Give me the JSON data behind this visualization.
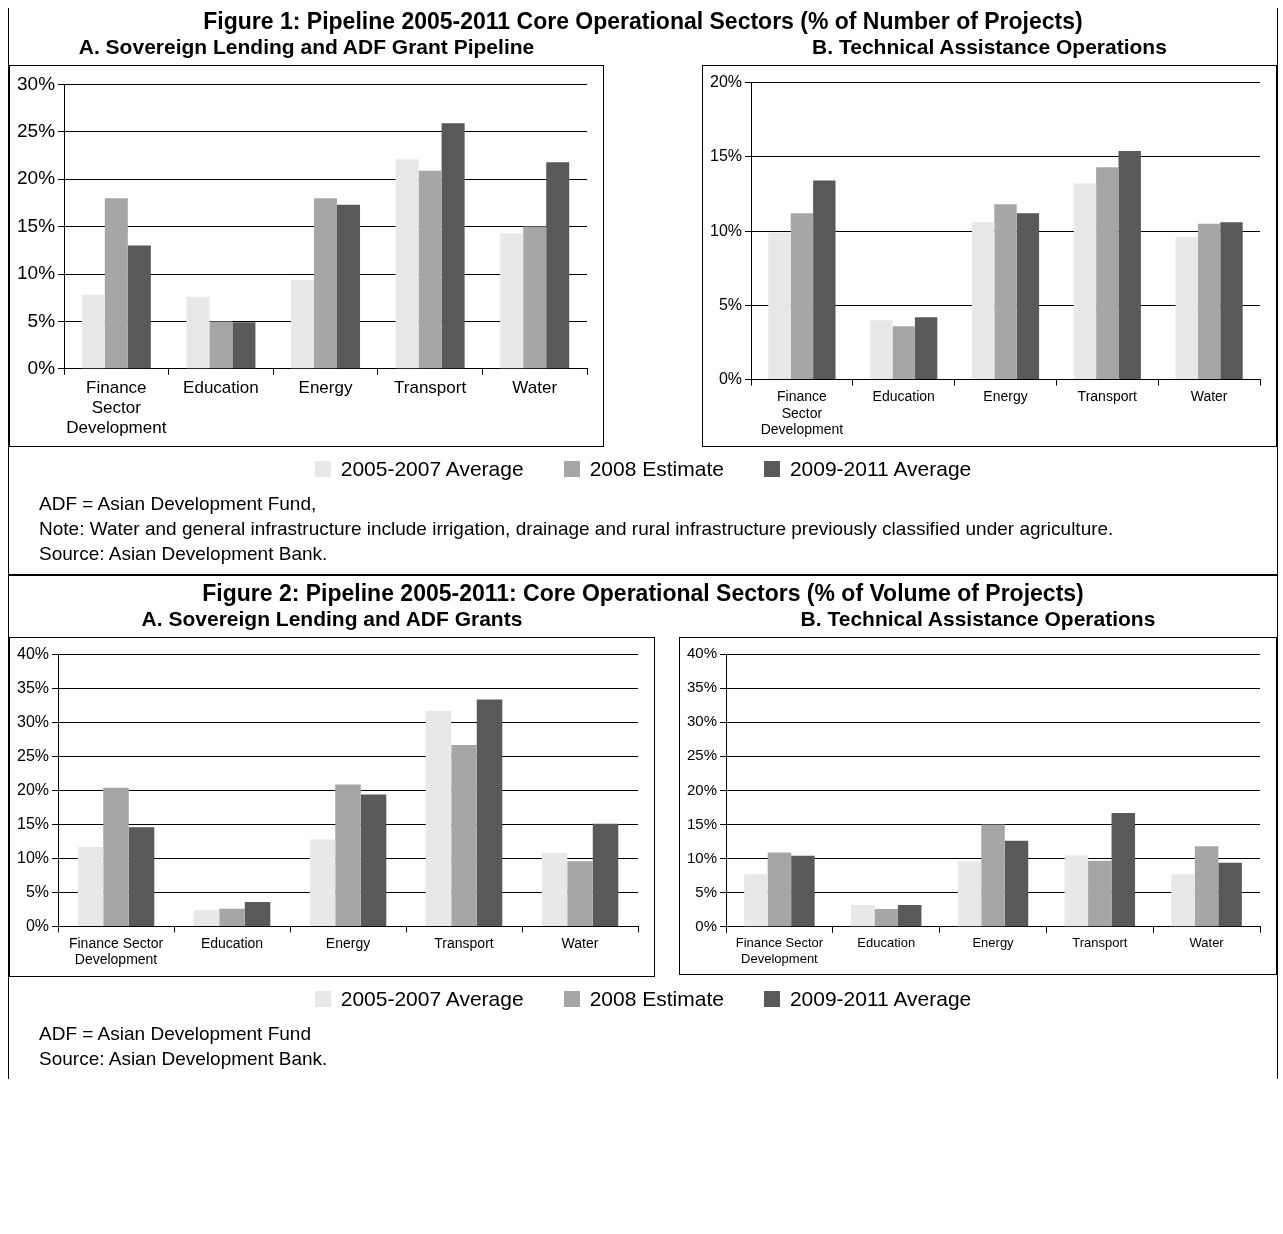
{
  "chart_data": [
    {
      "type": "bar",
      "title": "Figure 1: Pipeline 2005-2011 Core Operational Sectors (% of Number of Projects)",
      "subtitle": "A. Sovereign Lending and ADF Grant Pipeline",
      "categories": [
        "Finance Sector Development",
        "Education",
        "Energy",
        "Transport",
        "Water"
      ],
      "series": [
        {
          "name": "2005-2007 Average",
          "color": "#e8e8e8",
          "values": [
            7.8,
            7.6,
            9.4,
            22.1,
            14.3
          ]
        },
        {
          "name": "2008 Estimate",
          "color": "#a6a6a6",
          "values": [
            18,
            5.0,
            18,
            20.9,
            15.0
          ]
        },
        {
          "name": "2009-2011 Average",
          "color": "#595959",
          "values": [
            13,
            4.9,
            17.3,
            25.9,
            21.8
          ]
        }
      ],
      "ylim": [
        0,
        30
      ],
      "yticks": [
        {
          "value": 0,
          "label": "0%"
        },
        {
          "value": 5,
          "label": "5%"
        },
        {
          "value": 10,
          "label": "10%"
        },
        {
          "value": 15,
          "label": "15%"
        },
        {
          "value": 20,
          "label": "20%"
        },
        {
          "value": 25,
          "label": "25%"
        },
        {
          "value": 30,
          "label": "30%"
        }
      ],
      "grid": "y",
      "legend": "bottom",
      "annotations": [
        "ADF = Asian Development Fund,",
        "Note:  Water and general infrastructure include irrigation, drainage and rural infrastructure previously classified under agriculture.",
        "Source:  Asian Development Bank."
      ]
    },
    {
      "type": "bar",
      "subtitle": "B. Technical Assistance Operations",
      "categories": [
        "Finance Sector Development",
        "Education",
        "Energy",
        "Transport",
        "Water"
      ],
      "series": [
        {
          "name": "2005-2007 Average",
          "color": "#e8e8e8",
          "values": [
            9.9,
            4.0,
            10.6,
            13.2,
            9.6
          ]
        },
        {
          "name": "2008 Estimate",
          "color": "#a6a6a6",
          "values": [
            11.2,
            3.6,
            11.8,
            14.3,
            10.5
          ]
        },
        {
          "name": "2009-2011 Average",
          "color": "#595959",
          "values": [
            13.4,
            4.2,
            11.2,
            15.4,
            10.6
          ]
        }
      ],
      "ylim": [
        0,
        20
      ],
      "yticks": [
        {
          "value": 0,
          "label": "0%"
        },
        {
          "value": 5,
          "label": "5%"
        },
        {
          "value": 10,
          "label": "10%"
        },
        {
          "value": 15,
          "label": "15%"
        },
        {
          "value": 20,
          "label": "20%"
        }
      ],
      "grid": "y",
      "legend": "bottom"
    },
    {
      "type": "bar",
      "title": "Figure 2: Pipeline 2005-2011: Core Operational Sectors (% of Volume of Projects)",
      "subtitle": "A. Sovereign Lending and ADF Grants",
      "categories": [
        "Finance Sector Development",
        "Education",
        "Energy",
        "Transport",
        "Water"
      ],
      "series": [
        {
          "name": "2005-2007 Average",
          "color": "#e8e8e8",
          "values": [
            11.7,
            2.4,
            12.8,
            31.7,
            10.8
          ]
        },
        {
          "name": "2008 Estimate",
          "color": "#a6a6a6",
          "values": [
            20.4,
            2.6,
            20.9,
            26.7,
            9.6
          ]
        },
        {
          "name": "2009-2011 Average",
          "color": "#595959",
          "values": [
            14.6,
            3.6,
            19.4,
            33.4,
            15.1
          ]
        }
      ],
      "ylim": [
        0,
        40
      ],
      "yticks": [
        {
          "value": 0,
          "label": "0%"
        },
        {
          "value": 5,
          "label": "5%"
        },
        {
          "value": 10,
          "label": "10%"
        },
        {
          "value": 15,
          "label": "15%"
        },
        {
          "value": 20,
          "label": "20%"
        },
        {
          "value": 25,
          "label": "25%"
        },
        {
          "value": 30,
          "label": "30%"
        },
        {
          "value": 35,
          "label": "35%"
        },
        {
          "value": 40,
          "label": "40%"
        }
      ],
      "grid": "y",
      "legend": "bottom",
      "annotations": [
        "ADF = Asian Development Fund",
        "Source: Asian Development Bank."
      ]
    },
    {
      "type": "bar",
      "subtitle": "B. Technical Assistance Operations",
      "categories": [
        "Finance Sector Development",
        "Education",
        "Energy",
        "Transport",
        "Water"
      ],
      "series": [
        {
          "name": "2005-2007 Average",
          "color": "#e8e8e8",
          "values": [
            7.7,
            3.2,
            9.6,
            10.5,
            7.7
          ]
        },
        {
          "name": "2008 Estimate",
          "color": "#a6a6a6",
          "values": [
            10.9,
            2.6,
            15.0,
            9.7,
            11.8
          ]
        },
        {
          "name": "2009-2011 Average",
          "color": "#595959",
          "values": [
            10.4,
            3.2,
            12.6,
            16.7,
            9.4
          ]
        }
      ],
      "ylim": [
        0,
        40
      ],
      "yticks": [
        {
          "value": 0,
          "label": "0%"
        },
        {
          "value": 5,
          "label": "5%"
        },
        {
          "value": 10,
          "label": "10%"
        },
        {
          "value": 15,
          "label": "15%"
        },
        {
          "value": 20,
          "label": "20%"
        },
        {
          "value": 25,
          "label": "25%"
        },
        {
          "value": 30,
          "label": "30%"
        },
        {
          "value": 35,
          "label": "35%"
        },
        {
          "value": 40,
          "label": "40%"
        }
      ],
      "grid": "y",
      "legend": "bottom"
    }
  ]
}
